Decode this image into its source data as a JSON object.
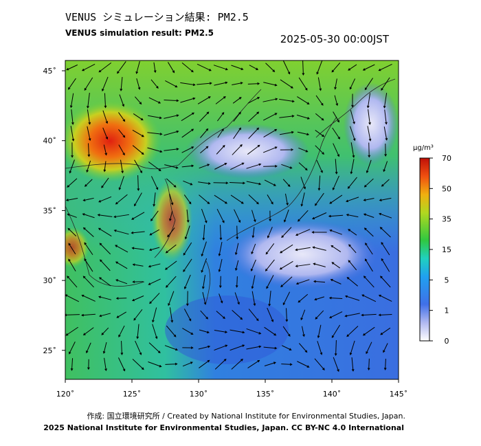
{
  "header": {
    "title_ja": "VENUS シミュレーション結果: PM2.5",
    "title_en": "VENUS simulation result: PM2.5",
    "timestamp": "2025-05-30 00:00JST"
  },
  "map": {
    "lon_labels": [
      "120˚",
      "125˚",
      "130˚",
      "135˚",
      "140˚",
      "145˚"
    ],
    "lat_labels": [
      "45˚",
      "40˚",
      "35˚",
      "30˚",
      "25˚"
    ]
  },
  "colorbar": {
    "unit": "μg/m³",
    "ticks": [
      70,
      50,
      35,
      15,
      5,
      1,
      0
    ]
  },
  "footer": {
    "credit": "作成: 国立環境研究所 / Created by National Institute for Environmental Studies, Japan.",
    "copyright": "2025 National Institute for Environmental Studies, Japan. CC BY-NC 4.0 International"
  }
}
